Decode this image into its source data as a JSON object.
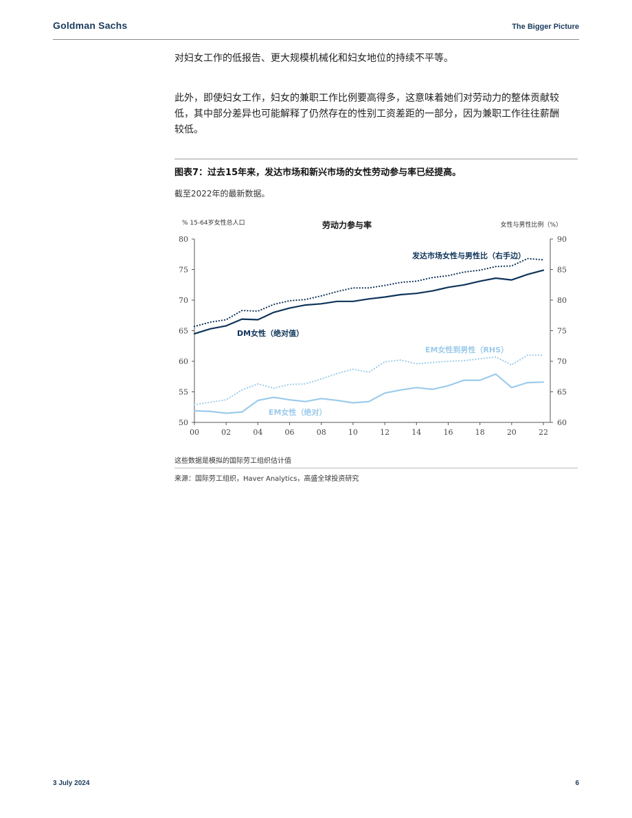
{
  "header": {
    "brand": "Goldman Sachs",
    "section": "The Bigger Picture"
  },
  "body": {
    "para1": "对妇女工作的低报告、更大规模机械化和妇女地位的持续不平等。",
    "para2": "此外，即使妇女工作，妇女的兼职工作比例要高得多，这意味着她们对劳动力的整体贡献较低，其中部分差异也可能解释了仍然存在的性别工资差距的一部分，因为兼职工作往往薪酬较低。"
  },
  "figure": {
    "title": "图表7：过去15年来，发达市场和新兴市场的女性劳动参与率已经提高。",
    "subtitle": "截至2022年的最新数据。",
    "note": "这些数据是模拟的国际劳工组织估计值",
    "source": "来源：国际劳工组织，Haver Analytics，高盛全球投资研究"
  },
  "footer": {
    "date": "3 July 2024",
    "page": "6"
  },
  "chart_data": {
    "type": "line",
    "title": "劳动力参与率",
    "ylabel_left": "% 15-64岁女性总人口",
    "ylabel_right": "女性与男性比例（%）",
    "x": [
      2000,
      2001,
      2002,
      2003,
      2004,
      2005,
      2006,
      2007,
      2008,
      2009,
      2010,
      2011,
      2012,
      2013,
      2014,
      2015,
      2016,
      2017,
      2018,
      2019,
      2020,
      2021,
      2022
    ],
    "x_tick_labels": [
      "00",
      "02",
      "04",
      "06",
      "08",
      "10",
      "12",
      "14",
      "16",
      "18",
      "20",
      "22"
    ],
    "x_tick_values": [
      2000,
      2002,
      2004,
      2006,
      2008,
      2010,
      2012,
      2014,
      2016,
      2018,
      2020,
      2022
    ],
    "ylim_left": [
      50,
      80
    ],
    "ylim_right": [
      60,
      90
    ],
    "yticks_left": [
      "50",
      "55",
      "60",
      "65",
      "70",
      "75",
      "80"
    ],
    "yticks_right": [
      "60",
      "65",
      "70",
      "75",
      "80",
      "85",
      "90"
    ],
    "grid": false,
    "series": [
      {
        "name": "DM女性（绝对值）",
        "axis": "left",
        "style": "solid",
        "color": "#0d3358",
        "values": [
          64.5,
          65.3,
          65.8,
          66.9,
          66.8,
          68.0,
          68.7,
          69.2,
          69.4,
          69.8,
          69.8,
          70.2,
          70.5,
          70.9,
          71.1,
          71.5,
          72.1,
          72.5,
          73.1,
          73.6,
          73.3,
          74.2,
          74.9
        ]
      },
      {
        "name": "发达市场女性与男性比（右手边）",
        "axis": "right",
        "style": "dotted",
        "color": "#0d3358",
        "values": [
          75.7,
          76.4,
          76.8,
          78.3,
          78.2,
          79.3,
          79.9,
          80.1,
          80.7,
          81.4,
          82.0,
          82.0,
          82.4,
          82.9,
          83.1,
          83.7,
          84.0,
          84.6,
          84.9,
          85.5,
          85.6,
          86.8,
          86.6
        ]
      },
      {
        "name": "EM女性（绝对）",
        "axis": "left",
        "style": "solid",
        "color": "#9ccbea",
        "values": [
          51.9,
          51.8,
          51.5,
          51.7,
          53.6,
          54.1,
          53.7,
          53.4,
          53.9,
          53.6,
          53.2,
          53.4,
          54.8,
          55.3,
          55.7,
          55.4,
          56.0,
          56.9,
          56.9,
          57.9,
          55.7,
          56.5,
          56.6
        ]
      },
      {
        "name": "EM女性到男性（RHS）",
        "axis": "right",
        "style": "dotted",
        "color": "#9ccbea",
        "values": [
          62.9,
          63.3,
          63.7,
          65.3,
          66.3,
          65.6,
          66.2,
          66.3,
          67.1,
          68.0,
          68.7,
          68.2,
          69.9,
          70.2,
          69.6,
          69.8,
          70.0,
          70.1,
          70.4,
          70.7,
          69.4,
          71.0,
          71.0
        ]
      }
    ]
  }
}
